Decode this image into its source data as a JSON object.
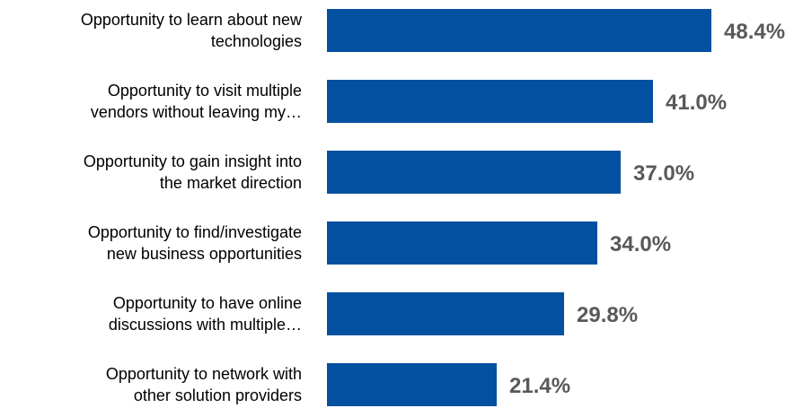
{
  "chart_data": {
    "type": "bar",
    "orientation": "horizontal",
    "categories": [
      [
        "Opportunity to learn about new",
        "technologies"
      ],
      [
        "Opportunity to visit multiple",
        "vendors without leaving my…"
      ],
      [
        "Opportunity to gain insight into",
        "the market direction"
      ],
      [
        "Opportunity to find/investigate",
        "new business opportunities"
      ],
      [
        "Opportunity to have online",
        "discussions with multiple…"
      ],
      [
        "Opportunity to network with",
        "other solution providers"
      ]
    ],
    "values": [
      48.4,
      41.0,
      37.0,
      34.0,
      29.8,
      21.4
    ],
    "value_labels": [
      "48.4%",
      "41.0%",
      "37.0%",
      "34.0%",
      "29.8%",
      "21.4%"
    ],
    "title": "",
    "xlabel": "",
    "ylabel": "",
    "xlim": [
      0,
      48.4
    ],
    "grid": false,
    "legend": "none",
    "colors": {
      "bar": "#0450a0",
      "value_label": "#595959",
      "category_label": "#000000"
    }
  }
}
